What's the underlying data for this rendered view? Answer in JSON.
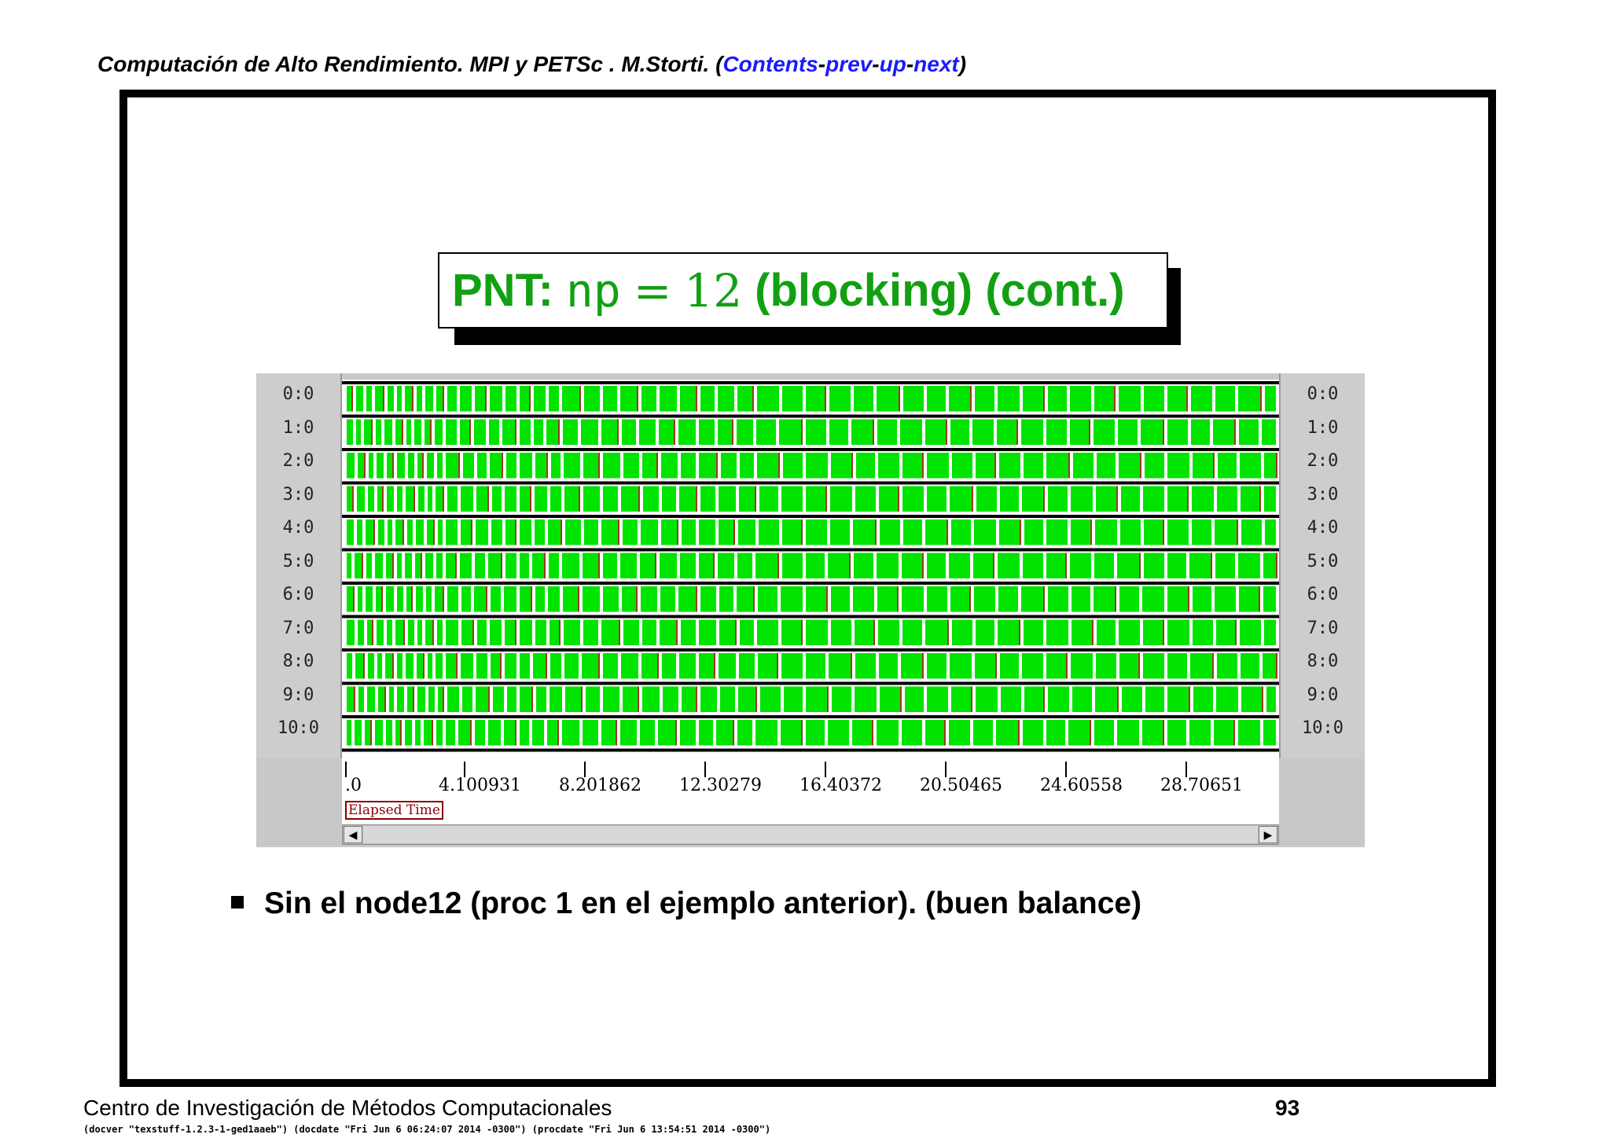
{
  "header": {
    "prefix": "Computación de Alto Rendimiento. MPI y PETSc . M.Storti. (",
    "links": [
      "Contents",
      "prev",
      "up",
      "next"
    ],
    "separator": "-",
    "suffix": ")"
  },
  "title": {
    "label": "PNT:",
    "var": "np",
    "eq": "=",
    "value": "12",
    "rest": "(blocking) (cont.)"
  },
  "trace": {
    "rows": [
      "0:0",
      "1:0",
      "2:0",
      "3:0",
      "4:0",
      "5:0",
      "6:0",
      "7:0",
      "8:0",
      "9:0",
      "10:0"
    ],
    "ticks": [
      ".0",
      "4.100931",
      "8.201862",
      "12.30279",
      "16.40372",
      "20.50465",
      "24.60558",
      "28.70651"
    ],
    "axis_label": "Elapsed Time",
    "colors": {
      "compute": "#00e400",
      "comm": "#9a3a1e",
      "gap": "#ffffff",
      "panel": "#c8c8c8"
    }
  },
  "bullet": "Sin el node12 (proc 1 en el ejemplo anterior). (buen balance)",
  "footer": {
    "org": "Centro de Investigación de Métodos Computacionales",
    "page": "93",
    "meta": "(docver \"texstuff-1.2.3-1-ged1aaeb\") (docdate \"Fri Jun 6 06:24:07 2014 -0300\") (procdate \"Fri Jun 6 13:54:51 2014 -0300\")"
  }
}
